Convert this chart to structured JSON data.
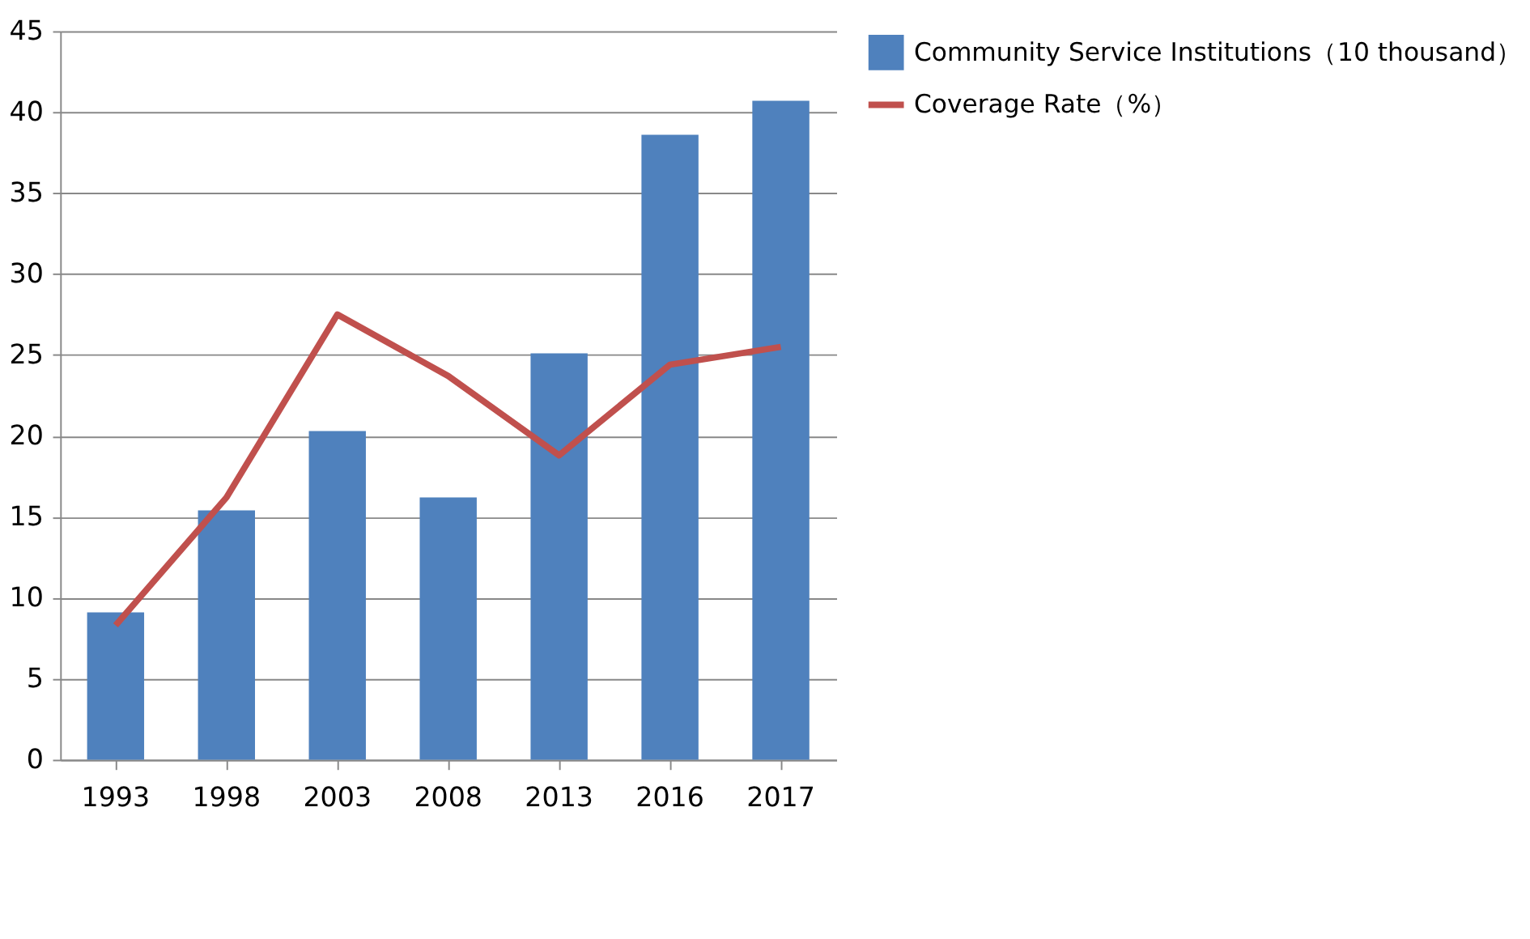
{
  "chart_data": {
    "type": "bar",
    "categories": [
      "1993",
      "1998",
      "2003",
      "2008",
      "2013",
      "2016",
      "2017"
    ],
    "series": [
      {
        "name": "Community Service Institutions（10 thousand）",
        "color": "#4f81bd",
        "values": [
          9.1,
          15.4,
          20.3,
          16.2,
          25.1,
          38.6,
          40.7
        ]
      },
      {
        "name": "Coverage Rate（%）",
        "type": "line",
        "color": "#c0504d",
        "values": [
          8.3,
          16.2,
          27.5,
          23.7,
          18.8,
          24.4,
          25.5
        ]
      }
    ],
    "ylim": [
      0,
      45
    ],
    "yticks": [
      0,
      5,
      10,
      15,
      20,
      25,
      30,
      35,
      40,
      45
    ],
    "grid": "y",
    "legend": "right",
    "line_style": "solid",
    "marker": "none"
  }
}
